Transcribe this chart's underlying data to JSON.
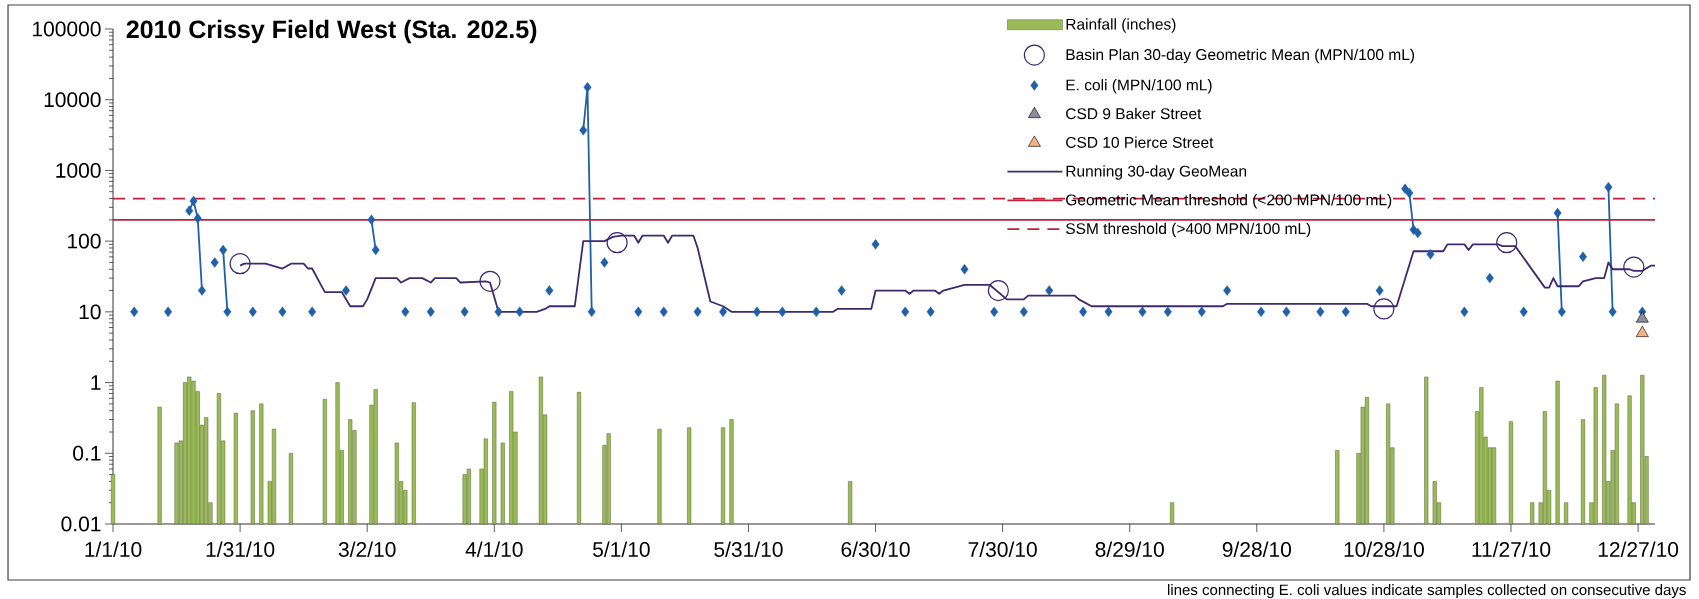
{
  "chart_data": {
    "type": "line",
    "title": "2010 Crissy Field West (Sta. 202.5)",
    "annotations": [
      "lines connecting E. coli values indicate samples collected on consecutive days"
    ],
    "xlim": [
      "2010-01-01",
      "2010-12-31"
    ],
    "xticks": [
      {
        "value": "2010-01-01",
        "label": "1/1/10"
      },
      {
        "value": "2010-01-31",
        "label": "1/31/10"
      },
      {
        "value": "2010-03-02",
        "label": "3/2/10"
      },
      {
        "value": "2010-04-01",
        "label": "4/1/10"
      },
      {
        "value": "2010-05-01",
        "label": "5/1/10"
      },
      {
        "value": "2010-05-31",
        "label": "5/31/10"
      },
      {
        "value": "2010-06-30",
        "label": "6/30/10"
      },
      {
        "value": "2010-07-30",
        "label": "7/30/10"
      },
      {
        "value": "2010-08-29",
        "label": "8/29/10"
      },
      {
        "value": "2010-09-28",
        "label": "9/28/10"
      },
      {
        "value": "2010-10-28",
        "label": "10/28/10"
      },
      {
        "value": "2010-11-27",
        "label": "11/27/10"
      },
      {
        "value": "2010-12-27",
        "label": "12/27/10"
      }
    ],
    "ylim": [
      0.01,
      100000
    ],
    "yticks": [
      0.01,
      0.1,
      1,
      10,
      100,
      1000,
      10000,
      100000
    ],
    "log": "y",
    "legend": "top right",
    "series": [
      {
        "name": "Rainfall (inches)",
        "type": "bar",
        "color": "#9bbb59",
        "x": [
          "2010-01-01",
          "2010-01-12",
          "2010-01-16",
          "2010-01-17",
          "2010-01-18",
          "2010-01-19",
          "2010-01-20",
          "2010-01-21",
          "2010-01-22",
          "2010-01-23",
          "2010-01-24",
          "2010-01-26",
          "2010-01-27",
          "2010-01-30",
          "2010-02-03",
          "2010-02-05",
          "2010-02-07",
          "2010-02-08",
          "2010-02-12",
          "2010-02-20",
          "2010-02-23",
          "2010-02-24",
          "2010-02-26",
          "2010-02-27",
          "2010-03-03",
          "2010-03-04",
          "2010-03-09",
          "2010-03-10",
          "2010-03-11",
          "2010-03-13",
          "2010-03-25",
          "2010-03-26",
          "2010-03-29",
          "2010-03-30",
          "2010-04-01",
          "2010-04-03",
          "2010-04-05",
          "2010-04-06",
          "2010-04-12",
          "2010-04-13",
          "2010-04-21",
          "2010-04-27",
          "2010-04-28",
          "2010-05-10",
          "2010-05-17",
          "2010-05-25",
          "2010-05-27",
          "2010-06-24",
          "2010-09-08",
          "2010-10-17",
          "2010-10-22",
          "2010-10-23",
          "2010-10-24",
          "2010-10-29",
          "2010-10-30",
          "2010-11-07",
          "2010-11-09",
          "2010-11-10",
          "2010-11-19",
          "2010-11-20",
          "2010-11-21",
          "2010-11-22",
          "2010-11-23",
          "2010-11-27",
          "2010-12-02",
          "2010-12-04",
          "2010-12-05",
          "2010-12-06",
          "2010-12-08",
          "2010-12-10",
          "2010-12-14",
          "2010-12-16",
          "2010-12-17",
          "2010-12-19",
          "2010-12-20",
          "2010-12-21",
          "2010-12-22",
          "2010-12-25",
          "2010-12-26",
          "2010-12-28",
          "2010-12-29"
        ],
        "values": [
          0.05,
          0.45,
          0.14,
          0.15,
          1.0,
          1.2,
          1.05,
          0.75,
          0.25,
          0.32,
          0.02,
          0.7,
          0.15,
          0.37,
          0.4,
          0.5,
          0.04,
          0.22,
          0.1,
          0.58,
          1.0,
          0.11,
          0.3,
          0.21,
          0.48,
          0.8,
          0.14,
          0.04,
          0.03,
          0.52,
          0.05,
          0.06,
          0.06,
          0.16,
          0.53,
          0.14,
          0.75,
          0.2,
          1.2,
          0.35,
          0.73,
          0.13,
          0.19,
          0.22,
          0.23,
          0.23,
          0.3,
          0.04,
          0.02,
          0.11,
          0.1,
          0.45,
          0.62,
          0.5,
          0.12,
          1.2,
          0.04,
          0.02,
          0.39,
          0.85,
          0.17,
          0.12,
          0.12,
          0.28,
          0.02,
          0.02,
          0.39,
          0.03,
          1.05,
          0.02,
          0.3,
          0.02,
          0.85,
          1.27,
          0.04,
          0.11,
          0.5,
          0.65,
          0.02,
          1.27,
          0.09
        ]
      },
      {
        "name": "Basin Plan 30-day Geometric Mean (MPN/100 mL)",
        "type": "scatter",
        "marker": "circle",
        "color": "#3c2a6e",
        "x": [
          "2010-01-31",
          "2010-03-31",
          "2010-04-30",
          "2010-07-29",
          "2010-10-28",
          "2010-11-26",
          "2010-12-26"
        ],
        "values": [
          48,
          27,
          95,
          20,
          11,
          95,
          43
        ]
      },
      {
        "name": "E. coli (MPN/100 mL)",
        "type": "scatter",
        "marker": "diamond",
        "color": "#2060a8",
        "x": [
          "2010-01-06",
          "2010-01-14",
          "2010-01-19",
          "2010-01-20",
          "2010-01-21",
          "2010-01-22",
          "2010-01-25",
          "2010-01-27",
          "2010-01-28",
          "2010-02-03",
          "2010-02-10",
          "2010-02-17",
          "2010-02-25",
          "2010-03-03",
          "2010-03-04",
          "2010-03-11",
          "2010-03-17",
          "2010-03-25",
          "2010-04-02",
          "2010-04-07",
          "2010-04-14",
          "2010-04-22",
          "2010-04-23",
          "2010-04-24",
          "2010-04-27",
          "2010-05-05",
          "2010-05-11",
          "2010-05-19",
          "2010-05-25",
          "2010-06-02",
          "2010-06-08",
          "2010-06-16",
          "2010-06-22",
          "2010-06-30",
          "2010-07-07",
          "2010-07-13",
          "2010-07-21",
          "2010-07-28",
          "2010-08-04",
          "2010-08-10",
          "2010-08-18",
          "2010-08-24",
          "2010-09-01",
          "2010-09-07",
          "2010-09-15",
          "2010-09-21",
          "2010-09-29",
          "2010-10-05",
          "2010-10-13",
          "2010-10-19",
          "2010-10-27",
          "2010-11-02",
          "2010-11-03",
          "2010-11-04",
          "2010-11-05",
          "2010-11-08",
          "2010-11-16",
          "2010-11-22",
          "2010-11-30",
          "2010-12-08",
          "2010-12-09",
          "2010-12-14",
          "2010-12-20",
          "2010-12-21",
          "2010-12-28"
        ],
        "values": [
          10,
          10,
          270,
          370,
          210,
          20,
          50,
          75,
          10,
          10,
          10,
          10,
          20,
          200,
          75,
          10,
          10,
          10,
          10,
          10,
          20,
          3700,
          15000,
          10,
          50,
          10,
          10,
          10,
          10,
          10,
          10,
          10,
          20,
          90,
          10,
          10,
          40,
          10,
          10,
          20,
          10,
          10,
          10,
          10,
          10,
          20,
          10,
          10,
          10,
          10,
          20,
          550,
          480,
          145,
          130,
          65,
          10,
          30,
          10,
          250,
          10,
          60,
          580,
          10,
          10
        ]
      },
      {
        "marker": "none",
        "color": "#2060a8",
        "x": [
          "2010-01-19",
          "2010-01-20",
          "2010-01-21",
          "2010-01-22"
        ],
        "values": [
          270,
          370,
          210,
          20
        ]
      },
      {
        "marker": "none",
        "color": "#2060a8",
        "x": [
          "2010-01-27",
          "2010-01-28"
        ],
        "values": [
          75,
          10
        ]
      },
      {
        "marker": "none",
        "color": "#2060a8",
        "x": [
          "2010-03-03",
          "2010-03-04"
        ],
        "values": [
          200,
          75
        ]
      },
      {
        "marker": "none",
        "color": "#2060a8",
        "x": [
          "2010-04-22",
          "2010-04-23",
          "2010-04-24"
        ],
        "values": [
          3700,
          15000,
          10
        ]
      },
      {
        "marker": "none",
        "color": "#2060a8",
        "x": [
          "2010-11-02",
          "2010-11-03",
          "2010-11-04",
          "2010-11-05"
        ],
        "values": [
          550,
          480,
          145,
          130
        ]
      },
      {
        "marker": "none",
        "color": "#2060a8",
        "x": [
          "2010-12-08",
          "2010-12-09"
        ],
        "values": [
          250,
          10
        ]
      },
      {
        "marker": "none",
        "color": "#2060a8",
        "x": [
          "2010-12-20",
          "2010-12-21"
        ],
        "values": [
          580,
          10
        ]
      },
      {
        "name": "CSD 9 Baker Street",
        "type": "scatter",
        "marker": "triangle",
        "color": "#8c8c9c",
        "x": [
          "2010-12-28"
        ],
        "values": [
          8
        ]
      },
      {
        "name": "CSD 10 Pierce Street",
        "type": "scatter",
        "marker": "triangle",
        "color": "#f4b183",
        "x": [
          "2010-12-28"
        ],
        "values": [
          5
        ]
      },
      {
        "name": "Running 30-day GeoMean",
        "type": "line",
        "marker": "none",
        "color": "#3c2a6e",
        "x": [
          "2010-01-31",
          "2010-02-01",
          "2010-02-06",
          "2010-02-10",
          "2010-02-12",
          "2010-02-15",
          "2010-02-16",
          "2010-02-17",
          "2010-02-20",
          "2010-02-24",
          "2010-02-26",
          "2010-03-01",
          "2010-03-02",
          "2010-03-04",
          "2010-03-09",
          "2010-03-10",
          "2010-03-12",
          "2010-03-15",
          "2010-03-17",
          "2010-03-18",
          "2010-03-23",
          "2010-03-24",
          "2010-03-30",
          "2010-03-31",
          "2010-04-02",
          "2010-04-11",
          "2010-04-13",
          "2010-04-14",
          "2010-04-20",
          "2010-04-22",
          "2010-04-27",
          "2010-04-29",
          "2010-05-01",
          "2010-05-04",
          "2010-05-05",
          "2010-05-06",
          "2010-05-11",
          "2010-05-12",
          "2010-05-13",
          "2010-05-18",
          "2010-05-19",
          "2010-05-22",
          "2010-05-25",
          "2010-05-27",
          "2010-06-20",
          "2010-06-21",
          "2010-06-29",
          "2010-06-30",
          "2010-07-07",
          "2010-07-08",
          "2010-07-09",
          "2010-07-14",
          "2010-07-15",
          "2010-07-16",
          "2010-07-21",
          "2010-07-27",
          "2010-07-31",
          "2010-08-04",
          "2010-08-05",
          "2010-08-10",
          "2010-08-16",
          "2010-08-17",
          "2010-08-20",
          "2010-09-20",
          "2010-09-21",
          "2010-10-24",
          "2010-10-25",
          "2010-10-31",
          "2010-11-04",
          "2010-11-11",
          "2010-11-12",
          "2010-11-16",
          "2010-11-17",
          "2010-11-18",
          "2010-11-24",
          "2010-11-25",
          "2010-11-28",
          "2010-12-05",
          "2010-12-06",
          "2010-12-07",
          "2010-12-08",
          "2010-12-13",
          "2010-12-14",
          "2010-12-17",
          "2010-12-19",
          "2010-12-20",
          "2010-12-21",
          "2010-12-25",
          "2010-12-26",
          "2010-12-28",
          "2010-12-30",
          "2010-12-31"
        ],
        "values": [
          45,
          48,
          48,
          41,
          48,
          48,
          41,
          41,
          19,
          19,
          12,
          12,
          15,
          30,
          30,
          26,
          30,
          30,
          26,
          30,
          30,
          26,
          27,
          26,
          10,
          10,
          11,
          12,
          12,
          100,
          100,
          115,
          120,
          120,
          95,
          120,
          120,
          95,
          120,
          120,
          80,
          14,
          12,
          10,
          10,
          11,
          11,
          20,
          20,
          18,
          20,
          20,
          18,
          20,
          24,
          24,
          15,
          15,
          17,
          17,
          17,
          15,
          12,
          12,
          13,
          13,
          12,
          12,
          72,
          72,
          90,
          90,
          75,
          90,
          90,
          85,
          85,
          22,
          22,
          30,
          23,
          23,
          27,
          30,
          30,
          50,
          40,
          40,
          38,
          38,
          45,
          45
        ]
      }
    ],
    "ref_lines": [
      {
        "axis": "y",
        "value": 200,
        "label": "Geometric Mean threshold (<200 MPN/100 mL)",
        "color": "#c0203c",
        "line_style": "solid"
      },
      {
        "axis": "y",
        "value": 400,
        "label": "SSM threshold (>400 MPN/100 mL)",
        "color": "#c0203c",
        "line_style": "dashed"
      }
    ]
  }
}
